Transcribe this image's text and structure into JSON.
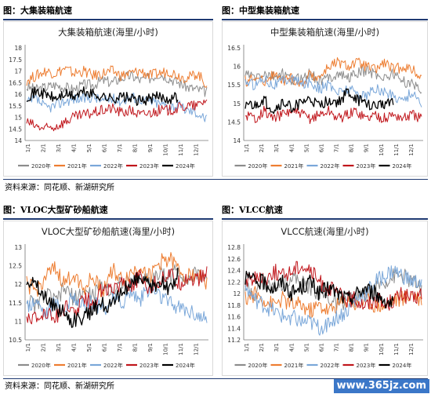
{
  "panels": [
    {
      "heading": "图：大集装箱航速"
    },
    {
      "heading": "图：中型集装箱航速"
    },
    {
      "heading": "图：VLOC大型矿砂船航速"
    },
    {
      "heading": "图：VLCC航速"
    }
  ],
  "source_text": "资料来源：同花顺、新湖研究所",
  "watermark": "www.365jz.com",
  "colors": {
    "2020年": "#8c8c8c",
    "2021年": "#ed7d31",
    "2022年": "#7aa7d9",
    "2023年": "#c0161c",
    "2024年": "#000000"
  },
  "chart_data": [
    {
      "type": "line",
      "title": "大集装箱航速(海里/小时)",
      "xlabels": [
        "1/1",
        "2/1",
        "3/1",
        "4/1",
        "5/1",
        "6/1",
        "7/1",
        "8/1",
        "9/1",
        "10/1",
        "11/1",
        "12/1"
      ],
      "ylim": [
        14,
        18
      ],
      "yticks": [
        14,
        14.5,
        15,
        15.5,
        16,
        16.5,
        17,
        17.5,
        18
      ],
      "legend_position": "bottom",
      "series": [
        {
          "name": "2020年",
          "color": "#8c8c8c",
          "values": [
            16.3,
            16.2,
            16.3,
            16.4,
            16.3,
            16.2,
            16.4,
            16.4,
            16.6,
            16.5,
            16.7,
            16.8,
            16.6,
            16.7,
            16.9,
            16.7,
            16.5,
            16.3,
            16.2,
            16.1
          ]
        },
        {
          "name": "2021年",
          "color": "#ed7d31",
          "values": [
            16.6,
            16.8,
            17.0,
            16.9,
            17.1,
            16.9,
            17.0,
            16.8,
            16.9,
            17.0,
            16.8,
            16.9,
            17.0,
            16.8,
            16.9,
            17.0,
            16.8,
            16.7,
            16.9,
            16.4
          ]
        },
        {
          "name": "2022年",
          "color": "#7aa7d9",
          "values": [
            15.6,
            15.8,
            15.4,
            15.5,
            15.7,
            15.8,
            15.8,
            15.9,
            15.7,
            15.8,
            15.7,
            15.9,
            15.8,
            15.7,
            15.6,
            15.5,
            15.5,
            15.3,
            15.2,
            14.9
          ]
        },
        {
          "name": "2023年",
          "color": "#c0161c",
          "values": [
            14.8,
            14.6,
            14.5,
            14.6,
            14.8,
            15.0,
            15.1,
            15.2,
            15.3,
            15.4,
            15.2,
            15.3,
            15.1,
            15.2,
            15.3,
            15.3,
            15.4,
            15.5,
            15.5,
            15.8
          ]
        },
        {
          "name": "2024年",
          "color": "#000000",
          "values": [
            15.9,
            16.1,
            16.0,
            15.8,
            16.0,
            15.9,
            16.1,
            16.0,
            15.9,
            15.8,
            15.9,
            15.8,
            15.7,
            15.8,
            15.9,
            15.8,
            15.9
          ]
        }
      ]
    },
    {
      "type": "line",
      "title": "中型集装箱航速(海里/小时)",
      "xlabels": [
        "1/1",
        "2/1",
        "3/1",
        "4/1",
        "5/1",
        "6/1",
        "7/1",
        "8/1",
        "9/1",
        "10/1",
        "11/1",
        "12/1"
      ],
      "ylim": [
        14,
        16.5
      ],
      "yticks": [
        14,
        14.5,
        15,
        15.5,
        16,
        16.5
      ],
      "legend_position": "bottom",
      "series": [
        {
          "name": "2020年",
          "color": "#8c8c8c",
          "values": [
            15.8,
            15.7,
            15.8,
            15.7,
            15.8,
            15.6,
            15.7,
            15.8,
            15.6,
            15.7,
            15.8,
            15.7,
            15.8,
            15.9,
            15.8,
            15.7,
            15.8,
            15.6,
            15.5,
            15.4
          ]
        },
        {
          "name": "2021年",
          "color": "#ed7d31",
          "values": [
            15.6,
            15.7,
            15.6,
            15.8,
            15.6,
            15.7,
            15.5,
            15.8,
            15.7,
            16.0,
            16.1,
            16.0,
            16.1,
            16.0,
            15.9,
            16.1,
            15.9,
            16.0,
            15.9,
            15.7
          ]
        },
        {
          "name": "2022年",
          "color": "#7aa7d9",
          "values": [
            15.6,
            15.5,
            15.7,
            15.5,
            15.6,
            15.7,
            15.5,
            15.6,
            15.4,
            15.5,
            15.3,
            15.4,
            15.3,
            15.2,
            15.4,
            15.3,
            15.2,
            15.1,
            15.3,
            15.0
          ]
        },
        {
          "name": "2023年",
          "color": "#c0161c",
          "values": [
            14.7,
            14.6,
            14.8,
            14.6,
            14.7,
            14.8,
            14.7,
            14.6,
            14.7,
            14.8,
            14.6,
            14.7,
            14.8,
            14.6,
            14.7,
            14.6,
            14.7,
            14.6,
            14.7,
            14.6
          ]
        },
        {
          "name": "2024年",
          "color": "#000000",
          "values": [
            15.0,
            14.9,
            15.1,
            14.8,
            15.0,
            14.9,
            15.0,
            15.1,
            14.9,
            15.1,
            15.0,
            15.3,
            15.1,
            15.0,
            14.9,
            15.0,
            15.1
          ]
        }
      ]
    },
    {
      "type": "line",
      "title": "VLOC大型矿砂船航速(海里/小时)",
      "xlabels": [
        "1/1",
        "2/1",
        "3/1",
        "4/1",
        "5/1",
        "6/1",
        "7/1",
        "8/1",
        "9/1",
        "10/1",
        "11/1",
        "12/1"
      ],
      "ylim": [
        10.5,
        13
      ],
      "yticks": [
        10.5,
        11,
        11.5,
        12,
        12.5,
        13
      ],
      "legend_position": "bottom",
      "series": [
        {
          "name": "2020年",
          "color": "#8c8c8c",
          "values": [
            11.6,
            11.4,
            11.8,
            11.5,
            11.9,
            11.6,
            11.8,
            11.7,
            12.0,
            11.8,
            12.1,
            12.0,
            12.2,
            12.1,
            12.3,
            12.2,
            12.4,
            12.1,
            12.3,
            12.2
          ]
        },
        {
          "name": "2021年",
          "color": "#ed7d31",
          "values": [
            12.0,
            11.8,
            12.2,
            12.4,
            12.0,
            12.3,
            11.9,
            12.2,
            11.8,
            12.4,
            12.1,
            12.3,
            12.5,
            12.2,
            12.6,
            12.7,
            12.4,
            12.2,
            12.3,
            12.0
          ]
        },
        {
          "name": "2022年",
          "color": "#7aa7d9",
          "values": [
            11.4,
            11.6,
            11.2,
            11.5,
            11.3,
            11.7,
            11.4,
            11.5,
            11.3,
            11.6,
            11.5,
            11.8,
            11.6,
            11.9,
            11.7,
            11.5,
            11.4,
            11.3,
            11.2,
            11.0
          ]
        },
        {
          "name": "2023年",
          "color": "#c0161c",
          "values": [
            11.2,
            11.0,
            11.3,
            11.1,
            11.4,
            11.2,
            11.6,
            11.5,
            11.9,
            11.8,
            12.1,
            12.0,
            12.2,
            11.9,
            12.1,
            12.3,
            12.0,
            12.2,
            12.1,
            12.3
          ]
        },
        {
          "name": "2024年",
          "color": "#000000",
          "values": [
            12.2,
            12.0,
            11.6,
            11.4,
            11.2,
            11.0,
            11.1,
            11.3,
            11.5,
            11.4,
            11.8,
            12.0,
            12.2,
            11.9,
            12.1,
            11.8,
            12.3
          ]
        }
      ]
    },
    {
      "type": "line",
      "title": "VLCC航速(海里/小时)",
      "xlabels": [
        "1/1",
        "2/1",
        "3/1",
        "4/1",
        "5/1",
        "6/1",
        "7/1",
        "8/1",
        "9/1",
        "10/1",
        "11/1",
        "12/1"
      ],
      "ylim": [
        11.2,
        12.8
      ],
      "yticks": [
        11.2,
        11.4,
        11.6,
        11.8,
        12,
        12.2,
        12.4,
        12.6,
        12.8
      ],
      "legend_position": "bottom",
      "series": [
        {
          "name": "2020年",
          "color": "#8c8c8c",
          "values": [
            12.1,
            12.0,
            12.2,
            12.1,
            12.2,
            12.3,
            12.2,
            12.1,
            12.0,
            11.9,
            11.8,
            11.9,
            11.9,
            12.0,
            12.1,
            12.2,
            12.3,
            12.3,
            12.2,
            12.1
          ]
        },
        {
          "name": "2021年",
          "color": "#ed7d31",
          "values": [
            11.9,
            12.0,
            11.9,
            11.8,
            11.9,
            11.8,
            11.8,
            11.7,
            11.8,
            11.7,
            11.8,
            11.9,
            11.8,
            11.9,
            11.8,
            11.8,
            11.9,
            11.9,
            12.0,
            11.9
          ]
        },
        {
          "name": "2022年",
          "color": "#7aa7d9",
          "values": [
            12.1,
            11.9,
            11.8,
            11.7,
            11.6,
            11.6,
            11.5,
            11.5,
            11.4,
            11.5,
            11.6,
            11.7,
            11.9,
            12.0,
            12.2,
            12.3,
            12.4,
            12.3,
            12.2,
            12.2
          ]
        },
        {
          "name": "2023年",
          "color": "#c0161c",
          "values": [
            12.2,
            12.3,
            12.2,
            12.4,
            12.3,
            12.4,
            12.5,
            12.4,
            12.2,
            12.1,
            12.0,
            11.9,
            11.9,
            11.8,
            11.9,
            11.8,
            11.9,
            12.0,
            11.9,
            12.0
          ]
        },
        {
          "name": "2024年",
          "color": "#000000",
          "values": [
            12.3,
            12.2,
            12.2,
            12.1,
            12.2,
            12.0,
            12.1,
            12.2,
            12.0,
            12.1,
            12.0,
            11.9,
            12.0,
            12.1,
            12.0,
            11.9,
            11.8
          ]
        }
      ]
    }
  ]
}
